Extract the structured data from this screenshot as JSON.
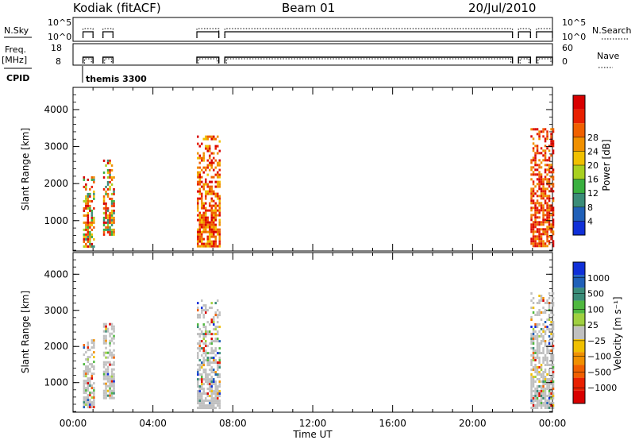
{
  "header": {
    "station": "Kodiak (fitACF)",
    "beam": "Beam 01",
    "date": "20/Jul/2010"
  },
  "status_panels": {
    "nsky_label": "N.Sky",
    "nsky_ticks": [
      "10^5",
      "10^0"
    ],
    "nsearch_label": "N.Search",
    "nsearch_ticks": [
      "10^5",
      "10^0"
    ],
    "freq_label_1": "Freq.",
    "freq_label_2": "[MHz]",
    "freq_ticks": [
      "18",
      "8"
    ],
    "nave_label": "Nave",
    "nave_ticks": [
      "60",
      "0"
    ],
    "cpid_label": "CPID",
    "cpid_value": "themis 3300",
    "active_periods_hours": [
      [
        0.5,
        1.0
      ],
      [
        1.5,
        2.0
      ],
      [
        6.2,
        7.3
      ],
      [
        7.6,
        22.0
      ],
      [
        22.3,
        22.9
      ],
      [
        23.2,
        24.0
      ]
    ]
  },
  "chart_data": [
    {
      "type": "heatmap",
      "ylabel": "Slant Range [km]",
      "yticks": [
        "1000",
        "2000",
        "3000",
        "4000"
      ],
      "ylim": [
        180,
        4600
      ],
      "xlim": [
        0,
        24
      ],
      "colorbar": {
        "label": "Power [dB]",
        "ticks": [
          "4",
          "8",
          "12",
          "16",
          "20",
          "24",
          "28"
        ],
        "colors": [
          "#1030d8",
          "#2060b8",
          "#3a8c78",
          "#3ab040",
          "#a8d020",
          "#f0c000",
          "#f09000",
          "#f06000",
          "#e82000",
          "#d80000"
        ]
      },
      "echo_regions": [
        {
          "x": [
            0.5,
            1.0
          ],
          "range_km": [
            300,
            2200
          ],
          "dominant": "green-orange-red"
        },
        {
          "x": [
            1.5,
            2.0
          ],
          "range_km": [
            600,
            2650
          ],
          "dominant": "green-yellow-orange"
        },
        {
          "x": [
            6.2,
            7.3
          ],
          "range_km": [
            300,
            3300
          ],
          "dominant": "orange-red"
        },
        {
          "x": [
            22.9,
            24.0
          ],
          "range_km": [
            300,
            3500
          ],
          "dominant": "red"
        }
      ]
    },
    {
      "type": "heatmap",
      "ylabel": "Slant Range [km]",
      "yticks": [
        "1000",
        "2000",
        "3000",
        "4000"
      ],
      "ylim": [
        180,
        4600
      ],
      "xlim": [
        0,
        24
      ],
      "xlabel": "Time UT",
      "xticks": [
        "00:00",
        "04:00",
        "08:00",
        "12:00",
        "16:00",
        "20:00",
        "00:00"
      ],
      "colorbar": {
        "label": "Velocity [m s⁻¹]",
        "ticks": [
          "1000",
          "500",
          "100",
          "25",
          "−25",
          "−100",
          "−500",
          "−1000"
        ],
        "colors": [
          "#1030d8",
          "#2060b8",
          "#3a8c78",
          "#50b840",
          "#a0d040",
          "#c0c0c0",
          "#f0c000",
          "#f09000",
          "#f06000",
          "#e82000",
          "#d80000"
        ]
      },
      "echo_regions": [
        {
          "x": [
            0.5,
            1.0
          ],
          "range_km": [
            300,
            2200
          ],
          "dominant": "grey"
        },
        {
          "x": [
            1.5,
            2.0
          ],
          "range_km": [
            600,
            2650
          ],
          "dominant": "grey"
        },
        {
          "x": [
            6.2,
            7.3
          ],
          "range_km": [
            300,
            3300
          ],
          "dominant": "grey"
        },
        {
          "x": [
            22.9,
            24.0
          ],
          "range_km": [
            300,
            3500
          ],
          "dominant": "grey"
        }
      ]
    }
  ]
}
